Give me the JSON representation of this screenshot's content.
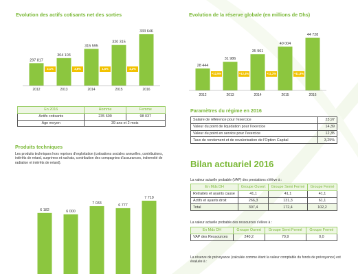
{
  "chart_data": [
    {
      "type": "bar",
      "title": "Evolution des actifs cotisants net des sorties",
      "categories": [
        "2012",
        "2013",
        "2014",
        "2015",
        "2016"
      ],
      "values": [
        297817,
        304103,
        315595,
        320315,
        333646
      ],
      "value_labels": [
        "297 817",
        "304 103",
        "315 595",
        "320 315",
        "333 646"
      ],
      "color": "#8cc63f",
      "annotations": [
        "2,1%",
        "3,8%",
        "1,5%",
        "4,2%"
      ],
      "annotation_color": "#f2c200"
    },
    {
      "type": "bar",
      "title": "Evolution de la réserve globale (en millions de Dhs)",
      "categories": [
        "2012",
        "2013",
        "2014",
        "2015",
        "2016"
      ],
      "values": [
        28444,
        31986,
        35961,
        40004,
        44728
      ],
      "value_labels": [
        "28 444",
        "31 986",
        "35 961",
        "40 004",
        "44 728"
      ],
      "color": "#8cc63f",
      "annotations": [
        "+12,5%",
        "+12,4%",
        "+11,2%",
        "+11,8%"
      ],
      "annotation_color": "#f2c200"
    },
    {
      "type": "bar",
      "title": "Produits techniques",
      "description": "Les produits techniques hors reprises d'exploitation (cotisations sociales annuelles, contributions, intérêts de retard, surprimes et rachats, contribution des compagnies d'assurances, indemnité de radiation et intérêts de retard).",
      "values": [
        6182,
        6000,
        7033,
        6777,
        7719
      ],
      "value_labels": [
        "6 182",
        "6 000",
        "7 033",
        "6 777",
        "7 719"
      ],
      "color": "#8cc63f"
    }
  ],
  "workforce_table": {
    "header": [
      "En 2016",
      "Homme",
      "Femme"
    ],
    "rows": [
      [
        "Actifs cotisants",
        "235 609",
        "98 037"
      ],
      [
        "Age moyen",
        "39 ans et 2 mois"
      ]
    ]
  },
  "parameters": {
    "title": "Paramètres du régime en 2016",
    "rows": [
      [
        "Salaire de référence pour l'exercice",
        "23,97"
      ],
      [
        "Valeur du point de liquidation pour l'exercice",
        "14,39"
      ],
      [
        "Valeur du point en service pour l'exercice",
        "12,35"
      ],
      [
        "Taux de rendement et de revalorisation de l'Option Capital",
        "3,25%"
      ]
    ]
  },
  "bilan": {
    "title": "Bilan actuariel 2016",
    "intro_1": "La valeur actuelle probable (VAP) des prestations s'élève à :",
    "table_1": {
      "header": [
        "En Mds DH",
        "Groupe Ouvert",
        "Groupe Semi Fermé",
        "Groupe Fermé"
      ],
      "rows": [
        [
          "Retraités et ayants cause",
          "41,1",
          "41,1",
          "41,1"
        ],
        [
          "Actifs et ayants droit",
          "266,3",
          "131,3",
          "61,1"
        ],
        [
          "Total",
          "307,4",
          "172,4",
          "102,2"
        ]
      ]
    },
    "intro_2": "La valeur actuelle probable des ressources s'élève à :",
    "table_2": {
      "header": [
        "En Mds DH",
        "Groupe Ouvert",
        "Groupe Semi Fermé",
        "Groupe Fermé"
      ],
      "rows": [
        [
          "VAP des Ressources",
          "240,2",
          "70,9",
          "0,0"
        ]
      ]
    },
    "intro_3": "La réserve de prévoyance (calculée comme étant la valeur comptable du fonds de prévoyance) est évaluée à :"
  }
}
